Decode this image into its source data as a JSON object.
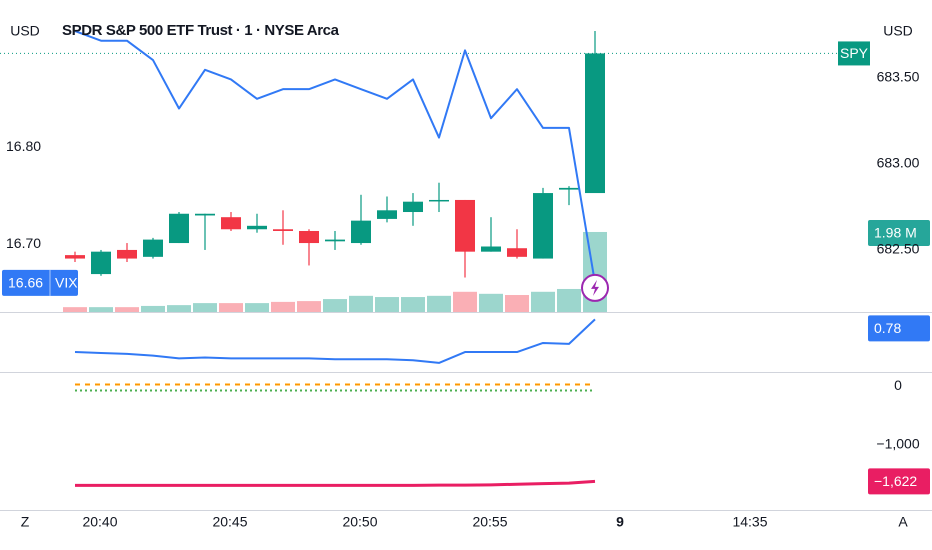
{
  "header": {
    "currency_left": "USD",
    "title": "SPDR S&P 500 ETF Trust · 1 · NYSE Arca",
    "currency_right": "USD"
  },
  "buttons": {
    "zoom": "Z",
    "auto": "A"
  },
  "chart_data": [
    {
      "type": "candlestick",
      "symbol": "SPY",
      "x": [
        "20:39",
        "20:40",
        "20:41",
        "20:42",
        "20:43",
        "20:44",
        "20:45",
        "20:46",
        "20:47",
        "20:48",
        "20:49",
        "20:50",
        "20:51",
        "20:52",
        "20:53",
        "20:54",
        "20:55",
        "20:56",
        "20:57",
        "20:58",
        "20:59"
      ],
      "open": [
        682.47,
        682.36,
        682.5,
        682.46,
        682.54,
        682.7,
        682.69,
        682.62,
        682.62,
        682.61,
        682.55,
        682.54,
        682.68,
        682.72,
        682.79,
        682.79,
        682.49,
        682.51,
        682.45,
        682.85,
        682.83
      ],
      "high": [
        682.49,
        682.5,
        682.54,
        682.57,
        682.72,
        682.71,
        682.72,
        682.71,
        682.73,
        682.62,
        682.61,
        682.82,
        682.81,
        682.83,
        682.89,
        682.79,
        682.69,
        682.62,
        682.86,
        682.87,
        683.77
      ],
      "low": [
        682.43,
        682.35,
        682.43,
        682.45,
        682.54,
        682.5,
        682.61,
        682.6,
        682.53,
        682.41,
        682.5,
        682.53,
        682.66,
        682.64,
        682.72,
        682.34,
        682.49,
        682.45,
        682.45,
        682.76,
        682.83
      ],
      "close": [
        682.45,
        682.49,
        682.45,
        682.56,
        682.71,
        682.71,
        682.62,
        682.64,
        682.61,
        682.54,
        682.56,
        682.67,
        682.73,
        682.78,
        682.79,
        682.49,
        682.52,
        682.46,
        682.83,
        682.86,
        683.64
      ],
      "up_color": "#089981",
      "down_color": "#f23645",
      "ylim": [
        682.14,
        683.95
      ],
      "yticks": [
        {
          "value": 683.5,
          "label": "683.50"
        },
        {
          "value": 683,
          "label": "683.00"
        },
        {
          "value": 682.5,
          "label": "682.50"
        }
      ],
      "xticks": [
        "20:40",
        "20:45",
        "20:50",
        "20:55",
        "9",
        "14:35"
      ]
    },
    {
      "type": "line",
      "name": "VIX",
      "color": "#3179f5",
      "values": [
        16.92,
        16.91,
        16.91,
        16.89,
        16.84,
        16.88,
        16.87,
        16.85,
        16.86,
        16.86,
        16.87,
        16.86,
        16.85,
        16.87,
        16.81,
        16.9,
        16.83,
        16.86,
        16.82,
        16.82,
        16.66
      ],
      "current_label": "16.66",
      "ylim": [
        16.63,
        16.952
      ],
      "yticks": [
        {
          "value": 16.8,
          "label": "16.80"
        },
        {
          "value": 16.7,
          "label": "16.70"
        }
      ]
    },
    {
      "type": "bar",
      "name": "Volume",
      "values": [
        0.12,
        0.12,
        0.12,
        0.15,
        0.17,
        0.22,
        0.22,
        0.22,
        0.25,
        0.27,
        0.32,
        0.4,
        0.37,
        0.37,
        0.4,
        0.5,
        0.45,
        0.42,
        0.5,
        0.57,
        1.98
      ],
      "current_label": "1.98 M",
      "color": "#26a69a",
      "ylim": [
        0,
        7.72
      ]
    },
    {
      "type": "line",
      "color": "#3179f5",
      "values": [
        0.42,
        0.41,
        0.4,
        0.38,
        0.35,
        0.36,
        0.35,
        0.35,
        0.35,
        0.35,
        0.34,
        0.34,
        0.34,
        0.33,
        0.3,
        0.42,
        0.42,
        0.42,
        0.52,
        0.51,
        0.78
      ],
      "current_label": "0.78",
      "ylim": [
        0.2,
        0.85
      ]
    },
    {
      "type": "line",
      "series": [
        {
          "color": "#e91e63",
          "style": "solid",
          "values": [
            -1690,
            -1690,
            -1690,
            -1690,
            -1690,
            -1690,
            -1690,
            -1690,
            -1690,
            -1690,
            -1690,
            -1690,
            -1690,
            -1690,
            -1685,
            -1685,
            -1680,
            -1670,
            -1660,
            -1650,
            -1622
          ]
        },
        {
          "color": "#ff9800",
          "style": "dashed",
          "values": [
            34,
            34,
            34,
            34,
            34,
            34,
            34,
            34,
            34,
            34,
            34,
            34,
            34,
            34,
            34,
            34,
            34,
            34,
            34,
            34,
            34
          ]
        },
        {
          "color": "#4caf50",
          "style": "dotted",
          "values": [
            -69,
            -69,
            -69,
            -69,
            -69,
            -69,
            -69,
            -69,
            -69,
            -69,
            -69,
            -69,
            -69,
            -69,
            -69,
            -69,
            -69,
            -69,
            -69,
            -69,
            -69
          ]
        }
      ],
      "current_label": "−1,622",
      "ylim": [
        -2110,
        230
      ],
      "yticks": [
        0,
        {
          "value": -1000,
          "label": "−1,000"
        }
      ]
    }
  ]
}
